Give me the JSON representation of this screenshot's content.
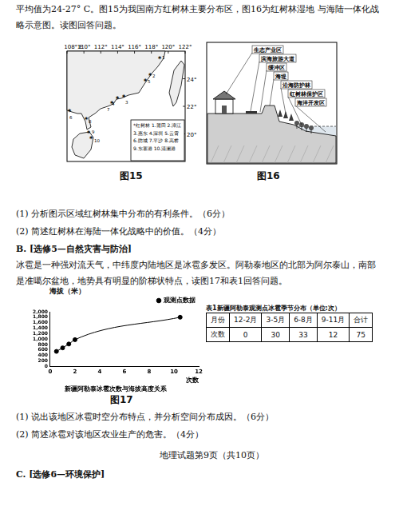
{
  "document": {
    "intro": "平均值为24-27° C。图15为我国南方红树林主要分布区，图16为红树林湿地 与海陆一体化战略示意图。读图回答问题。",
    "fig15": {
      "caption": "图15",
      "longitude_labels": [
        "108° E",
        "110°",
        "112°",
        "114°",
        "116°",
        "118°",
        "120°",
        "122°"
      ],
      "latitude_labels": [
        "24°",
        "22°",
        "20°"
      ],
      "legend_title": "*红树林",
      "legend_items": [
        "1.莆田",
        "2.漳江",
        "3.惠东",
        "4.深圳",
        "5.云霄",
        "6.防城",
        "7.平沙",
        "8.高桥",
        "9.东寨港",
        "10.清澜港"
      ],
      "site_numbers": [
        "1",
        "2",
        "3",
        "4",
        "5",
        "6",
        "7",
        "8",
        "9",
        "10"
      ]
    },
    "fig16": {
      "caption": "图16",
      "labels": [
        "生态产业区",
        "滨海旅游大道",
        "缓冲区",
        "海堤",
        "沿海防护林",
        "红树林保护区",
        "海洋开发区"
      ]
    },
    "questions_a": [
      "(1) 分析图示区域红树林集中分布的有利条件。（6分）",
      "(2) 简述红树林在海陆一体化战略中的价值。（4分）"
    ],
    "section_b": {
      "heading": "B. [选修5—自然灾害与防治]",
      "text": "冰雹是一种强对流天气，中纬度内陆地区是冰雹多发区。阿勒泰地区的北部为阿尔泰山，南部是准噶尔盆地，地势具有明显的阶梯状特点，读图17和表1回答问题。"
    },
    "fig17_caption": "图17",
    "table1": {
      "title": "表1新疆阿勒泰观测点冰雹季节分布（单位:次）",
      "header": [
        "月份",
        "12-2月",
        "3-5月",
        "6-8月",
        "9-11月",
        "合计"
      ],
      "rows": [
        [
          "次数",
          0,
          30,
          33,
          12,
          75
        ]
      ]
    },
    "questions_b": [
      "(1) 说出该地区冰雹时空分布特点，并分析空间分布成因。（6分）",
      "(2) 简述冰雹对该地区农业生产的危害。（4分）"
    ],
    "footer": "地理试题第9页（共10页）",
    "section_c": "C.  [选修6—环境保护]"
  },
  "chart_data": {
    "type": "scatter",
    "title": "新疆阿勒泰冰雹次数与海拔高度关系",
    "x_label": "次数",
    "y_label": "海拔（米）",
    "series": [
      {
        "name": "观测点数据",
        "color": "#000000",
        "marker": "circle",
        "line_style": "solid",
        "x": [
          0.5,
          1,
          1.5,
          2,
          10.5
        ],
        "values": [
          550,
          680,
          820,
          980,
          1800
        ]
      }
    ],
    "xlim": [
      0,
      12
    ],
    "xticks": [
      0,
      2,
      4,
      6,
      8,
      10,
      12
    ],
    "ylim": [
      0,
      2000
    ],
    "yticks": [
      0,
      200,
      400,
      600,
      800,
      1000,
      1200,
      1400,
      1600,
      1800,
      2000
    ],
    "grid": false,
    "legend": "top-right"
  }
}
